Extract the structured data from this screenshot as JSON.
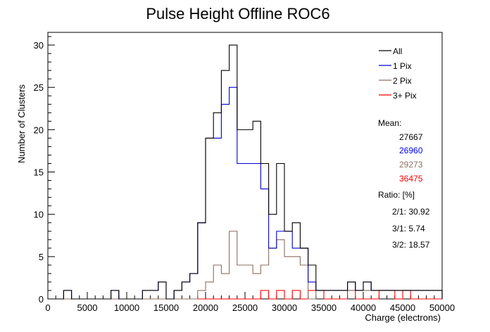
{
  "chart_data": {
    "type": "histogram",
    "title": "Pulse Height Offline ROC6",
    "xlabel": "Charge (electrons)",
    "ylabel": "Number of Clusters",
    "xlim": [
      0,
      50000
    ],
    "ylim": [
      0,
      31.5
    ],
    "bin_width": 1000,
    "x_ticks": [
      "0",
      "5000",
      "10000",
      "15000",
      "20000",
      "25000",
      "30000",
      "35000",
      "40000",
      "45000",
      "50000"
    ],
    "x_tick_values": [
      0,
      5000,
      10000,
      15000,
      20000,
      25000,
      30000,
      35000,
      40000,
      45000,
      50000
    ],
    "y_ticks": [
      "0",
      "5",
      "10",
      "15",
      "20",
      "25",
      "30"
    ],
    "y_tick_values": [
      0,
      5,
      10,
      15,
      20,
      25,
      30
    ],
    "series": [
      {
        "name": "All",
        "color": "#000000",
        "values": [
          0,
          0,
          1,
          0,
          0,
          0,
          0,
          0,
          1,
          0,
          0,
          0,
          1,
          1,
          2,
          0,
          1,
          2,
          3,
          9,
          19,
          22,
          27,
          30,
          20,
          20,
          21,
          16,
          10,
          16,
          8,
          9,
          6,
          4,
          1,
          1,
          1,
          1,
          2,
          1,
          2,
          1,
          1,
          1,
          1,
          1,
          1,
          1,
          1,
          1
        ]
      },
      {
        "name": "1 Pix",
        "color": "#0000cc",
        "values": [
          0,
          0,
          1,
          0,
          0,
          0,
          0,
          0,
          1,
          0,
          0,
          0,
          1,
          1,
          2,
          0,
          1,
          2,
          3,
          9,
          19,
          19,
          23,
          25,
          16,
          16,
          16,
          13,
          6,
          8,
          8,
          6,
          6,
          2,
          1,
          1,
          1,
          1,
          2,
          1,
          2,
          1,
          1,
          1,
          1,
          1,
          1,
          1,
          1,
          1
        ]
      },
      {
        "name": "2 Pix",
        "color": "#8b6f60",
        "values": [
          0,
          0,
          0,
          0,
          0,
          0,
          0,
          0,
          0,
          0,
          0,
          0,
          0,
          0,
          0,
          0,
          0,
          0,
          0,
          1,
          2,
          4,
          3,
          8,
          4,
          4,
          3,
          4,
          6,
          7,
          5,
          5,
          4,
          0,
          1,
          1,
          1,
          1,
          1,
          1,
          1,
          1,
          1,
          1,
          1,
          1,
          1,
          1,
          1,
          1
        ]
      },
      {
        "name": "3+ Pix",
        "color": "#ff0000",
        "values": [
          0,
          0,
          0,
          0,
          0,
          0,
          0,
          0,
          0,
          0,
          0,
          0,
          0,
          0,
          0,
          0,
          0,
          0,
          0,
          0,
          0,
          0,
          0,
          0,
          0,
          0,
          0,
          1,
          0,
          1,
          0,
          1,
          0,
          1,
          1,
          0,
          0,
          0,
          1,
          0,
          0,
          0,
          1,
          1,
          0,
          1,
          0,
          0,
          0,
          0
        ]
      }
    ],
    "stats": {
      "mean_label": "Mean:",
      "means": [
        {
          "value": "27667",
          "color": "#000000"
        },
        {
          "value": "26960",
          "color": "#0000ff"
        },
        {
          "value": "29273",
          "color": "#8b6f60"
        },
        {
          "value": "36475",
          "color": "#ff0000"
        }
      ],
      "ratio_label": "Ratio: [%]",
      "ratios": [
        "2/1: 30.92",
        "3/1: 5.74",
        "3/2: 18.57"
      ]
    },
    "grid": false,
    "legend_position": "top-right"
  }
}
